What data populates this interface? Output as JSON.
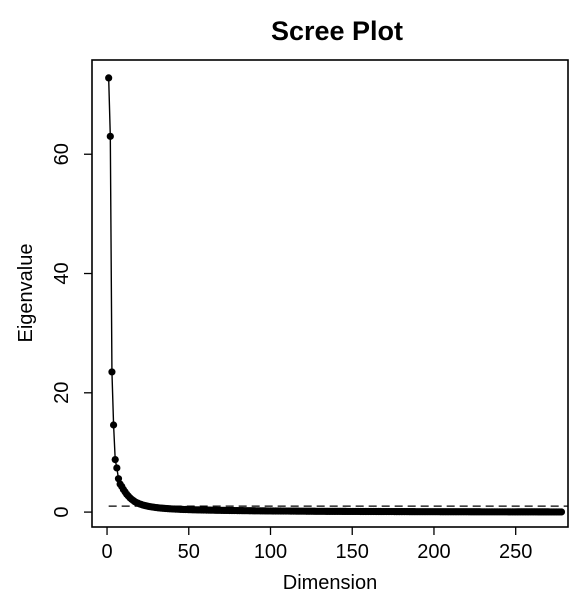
{
  "chart_data": {
    "type": "line",
    "title": "Scree Plot",
    "xlabel": "Dimension",
    "ylabel": "Eigenvalue",
    "xlim": [
      -9.2,
      282
    ],
    "ylim": [
      -2.5,
      75.8
    ],
    "xticks": [
      0,
      50,
      100,
      150,
      200,
      250
    ],
    "yticks": [
      0,
      20,
      40,
      60
    ],
    "grid": false,
    "legend": "none",
    "reference_line": {
      "y": 1,
      "style": "dashed"
    },
    "series": [
      {
        "x": [
          1,
          2,
          3,
          4,
          5,
          6,
          7,
          8,
          9,
          10,
          11,
          12,
          13,
          14,
          15,
          16,
          17,
          18,
          19,
          20,
          22,
          24,
          26,
          28,
          30,
          33,
          36,
          40,
          45,
          50,
          60,
          70,
          80,
          90,
          100,
          110,
          120,
          130,
          140,
          150,
          160,
          170,
          180,
          190,
          200,
          210,
          220,
          230,
          240,
          250,
          260,
          270,
          278
        ],
        "values": [
          72.8,
          63.0,
          23.5,
          14.6,
          8.8,
          7.4,
          5.6,
          4.7,
          4.3,
          3.8,
          3.4,
          3.0,
          2.7,
          2.4,
          2.15,
          1.95,
          1.75,
          1.6,
          1.48,
          1.36,
          1.18,
          1.04,
          0.93,
          0.84,
          0.76,
          0.67,
          0.6,
          0.53,
          0.46,
          0.41,
          0.34,
          0.29,
          0.25,
          0.22,
          0.19,
          0.17,
          0.15,
          0.13,
          0.12,
          0.11,
          0.1,
          0.09,
          0.08,
          0.07,
          0.065,
          0.06,
          0.055,
          0.05,
          0.045,
          0.04,
          0.035,
          0.03,
          0.025
        ]
      }
    ]
  },
  "colors": {
    "points": "#000000",
    "line": "#000000",
    "background": "#ffffff"
  }
}
